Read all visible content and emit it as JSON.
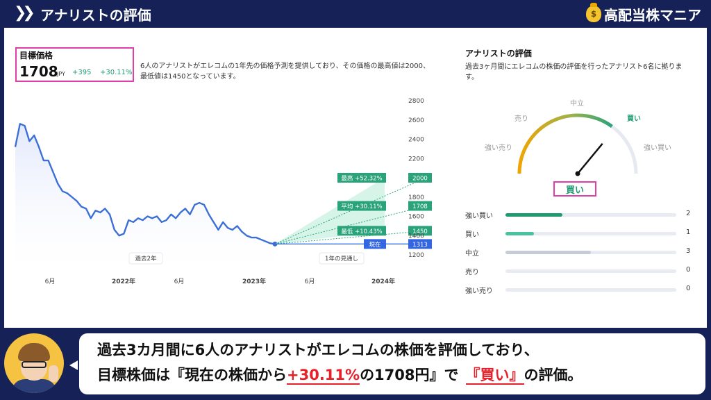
{
  "header": {
    "icon": "double-chevron-right-icon",
    "title": "アナリストの評価",
    "brand_icon": "money-bag-icon",
    "brand_name": "高配当株マニア"
  },
  "target": {
    "label": "目標価格",
    "price": "1708",
    "unit": "JPY",
    "change": "+395",
    "change_pct": "+30.11%"
  },
  "description": "6人のアナリストがエレコムの1年先の価格予測を提供しており、その価格の最高値は2000、最低値は1450となっています。",
  "chart_data": {
    "type": "line",
    "title": "",
    "yticks": [
      1200,
      1400,
      1600,
      1800,
      2200,
      2400,
      2600,
      2800
    ],
    "xticks": [
      "6月",
      "2022年",
      "6月",
      "2023年",
      "6月",
      "2024年"
    ],
    "ylim": [
      1200,
      2800
    ],
    "grid": false,
    "past_label": "過去2年",
    "forecast_label": "1年の見通し",
    "history": [
      2320,
      2560,
      2540,
      2380,
      2440,
      2320,
      2180,
      2180,
      2060,
      1940,
      1860,
      1840,
      1800,
      1760,
      1700,
      1680,
      1580,
      1660,
      1640,
      1680,
      1620,
      1460,
      1400,
      1420,
      1560,
      1540,
      1580,
      1560,
      1600,
      1580,
      1600,
      1540,
      1560,
      1620,
      1580,
      1640,
      1680,
      1620,
      1720,
      1740,
      1720,
      1620,
      1540,
      1460,
      1540,
      1480,
      1460,
      1500,
      1440,
      1400,
      1380,
      1380,
      1360,
      1340,
      1320,
      1313
    ],
    "forecast": [
      {
        "name": "最高",
        "pct": "+52.32%",
        "value": 2000,
        "color": "#2aa37a"
      },
      {
        "name": "平均",
        "pct": "+30.11%",
        "value": 1708,
        "color": "#2aa37a"
      },
      {
        "name": "最低",
        "pct": "+10.43%",
        "value": 1450,
        "color": "#2aa37a"
      },
      {
        "name": "現在",
        "pct": "",
        "value": 1313,
        "color": "#3366e0"
      }
    ]
  },
  "rating": {
    "title": "アナリストの評価",
    "description": "過去3ヶ月間にエレコムの株価の評価を行ったアナリスト6名に拠ります。",
    "gauge_labels": {
      "strong_sell": "強い売り",
      "sell": "売り",
      "neutral": "中立",
      "buy": "買い",
      "strong_buy": "強い買い"
    },
    "verdict": "買い",
    "breakdown": [
      {
        "label": "強い買い",
        "count": 2,
        "share": 0.333,
        "color": "#1e9a73"
      },
      {
        "label": "買い",
        "count": 1,
        "share": 0.167,
        "color": "#49c2a0"
      },
      {
        "label": "中立",
        "count": 3,
        "share": 0.5,
        "color": "#c6cbd8"
      },
      {
        "label": "売り",
        "count": 0,
        "share": 0,
        "color": "#c6cbd8"
      },
      {
        "label": "強い売り",
        "count": 0,
        "share": 0,
        "color": "#c6cbd8"
      }
    ]
  },
  "footer": {
    "line1": "過去3カ月間に6人のアナリストがエレコムの株価を評価しており、",
    "line2_a": "目標株価は『現在の株価から",
    "line2_hl1": "+30.11%",
    "line2_b": "の1708円』で",
    "line2_hl2": "『買い』",
    "line2_c": "の評価。"
  }
}
